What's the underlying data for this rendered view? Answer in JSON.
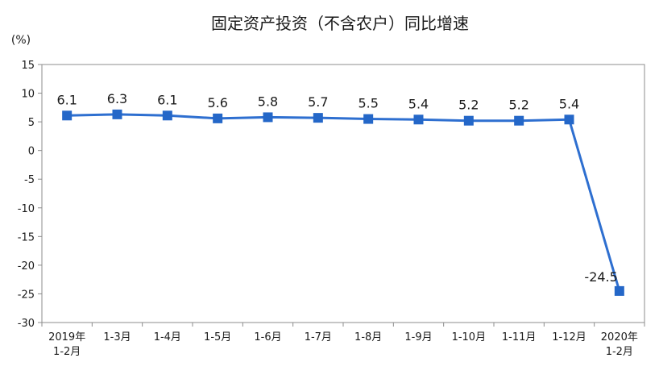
{
  "chart_data": {
    "type": "line",
    "title": "固定资产投资（不含农户）同比增速",
    "ylabel": "(%)",
    "xlabel": "",
    "categories": [
      [
        "2019年",
        "1-2月"
      ],
      [
        "1-3月"
      ],
      [
        "1-4月"
      ],
      [
        "1-5月"
      ],
      [
        "1-6月"
      ],
      [
        "1-7月"
      ],
      [
        "1-8月"
      ],
      [
        "1-9月"
      ],
      [
        "1-10月"
      ],
      [
        "1-11月"
      ],
      [
        "1-12月"
      ],
      [
        "2020年",
        "1-2月"
      ]
    ],
    "series": [
      {
        "values": [
          6.1,
          6.3,
          6.1,
          5.6,
          5.8,
          5.7,
          5.5,
          5.4,
          5.2,
          5.2,
          5.4,
          -24.5
        ],
        "labels": [
          "6.1",
          "6.3",
          "6.1",
          "5.6",
          "5.8",
          "5.7",
          "5.5",
          "5.4",
          "5.2",
          "5.2",
          "5.4",
          "-24.5"
        ]
      }
    ],
    "yticks": [
      15,
      10,
      5,
      0,
      -5,
      -10,
      -15,
      -20,
      -25,
      -30
    ],
    "ylim": [
      -30,
      15
    ],
    "grid": false,
    "legend": "none",
    "colors": {
      "line": "#2e6fd0",
      "marker": "#2467c8",
      "axis": "#8c8c8c",
      "text": "#1a1a1a"
    }
  }
}
